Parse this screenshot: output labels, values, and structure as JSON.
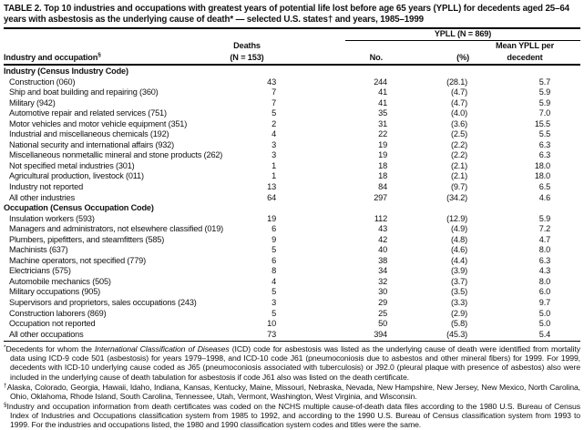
{
  "colors": {
    "ink": "#111111",
    "rule": "#000000",
    "background": "#ffffff"
  },
  "title": "TABLE 2. Top 10 industries and occupations with greatest years of potential life lost before age 65 years (YPLL) for decedents aged 25–64 years with asbestosis as the underlying cause of death* — selected U.S. states† and years, 1985–1999",
  "header": {
    "col_label": "Industry and occupation",
    "col_label_sup": "§",
    "deaths_top": "Deaths",
    "deaths_bottom": "(N = 153)",
    "ypll_group": "YPLL (N = 869)",
    "no": "No.",
    "pct": "(%)",
    "mean_top": "Mean YPLL per",
    "mean_bottom": "decedent"
  },
  "sections": [
    {
      "header": "Industry (Census Industry Code)",
      "rows": [
        {
          "label": "Construction (060)",
          "deaths": "43",
          "no": "244",
          "pct": "(28.1)",
          "mean": "5.7"
        },
        {
          "label": "Ship and boat building and repairing (360)",
          "deaths": "7",
          "no": "41",
          "pct": "(4.7)",
          "mean": "5.9"
        },
        {
          "label": "Military (942)",
          "deaths": "7",
          "no": "41",
          "pct": "(4.7)",
          "mean": "5.9"
        },
        {
          "label": "Automotive repair and related services (751)",
          "deaths": "5",
          "no": "35",
          "pct": "(4.0)",
          "mean": "7.0"
        },
        {
          "label": "Motor vehicles and motor vehicle equipment (351)",
          "deaths": "2",
          "no": "31",
          "pct": "(3.6)",
          "mean": "15.5"
        },
        {
          "label": "Industrial and miscellaneous chemicals (192)",
          "deaths": "4",
          "no": "22",
          "pct": "(2.5)",
          "mean": "5.5"
        },
        {
          "label": "National security and international affairs (932)",
          "deaths": "3",
          "no": "19",
          "pct": "(2.2)",
          "mean": "6.3"
        },
        {
          "label": "Miscellaneous nonmetallic mineral and stone products (262)",
          "deaths": "3",
          "no": "19",
          "pct": "(2.2)",
          "mean": "6.3"
        },
        {
          "label": "Not specified metal industries (301)",
          "deaths": "1",
          "no": "18",
          "pct": "(2.1)",
          "mean": "18.0"
        },
        {
          "label": "Agricultural production, livestock (011)",
          "deaths": "1",
          "no": "18",
          "pct": "(2.1)",
          "mean": "18.0"
        },
        {
          "label": "Industry not reported",
          "deaths": "13",
          "no": "84",
          "pct": "(9.7)",
          "mean": "6.5"
        },
        {
          "label": "All other industries",
          "deaths": "64",
          "no": "297",
          "pct": "(34.2)",
          "mean": "4.6"
        }
      ]
    },
    {
      "header": "Occupation (Census Occupation Code)",
      "rows": [
        {
          "label": "Insulation workers (593)",
          "deaths": "19",
          "no": "112",
          "pct": "(12.9)",
          "mean": "5.9"
        },
        {
          "label": "Managers and administrators, not elsewhere classified (019)",
          "deaths": "6",
          "no": "43",
          "pct": "(4.9)",
          "mean": "7.2"
        },
        {
          "label": "Plumbers, pipefitters, and steamfitters (585)",
          "deaths": "9",
          "no": "42",
          "pct": "(4.8)",
          "mean": "4.7"
        },
        {
          "label": "Machinists (637)",
          "deaths": "5",
          "no": "40",
          "pct": "(4.6)",
          "mean": "8.0"
        },
        {
          "label": "Machine operators, not specified (779)",
          "deaths": "6",
          "no": "38",
          "pct": "(4.4)",
          "mean": "6.3"
        },
        {
          "label": "Electricians (575)",
          "deaths": "8",
          "no": "34",
          "pct": "(3.9)",
          "mean": "4.3"
        },
        {
          "label": "Automobile mechanics (505)",
          "deaths": "4",
          "no": "32",
          "pct": "(3.7)",
          "mean": "8.0"
        },
        {
          "label": "Military occupations (905)",
          "deaths": "5",
          "no": "30",
          "pct": "(3.5)",
          "mean": "6.0"
        },
        {
          "label": "Supervisors and proprietors, sales occupations (243)",
          "deaths": "3",
          "no": "29",
          "pct": "(3.3)",
          "mean": "9.7"
        },
        {
          "label": "Construction laborers (869)",
          "deaths": "5",
          "no": "25",
          "pct": "(2.9)",
          "mean": "5.0"
        },
        {
          "label": "Occupation not reported",
          "deaths": "10",
          "no": "50",
          "pct": "(5.8)",
          "mean": "5.0"
        },
        {
          "label": "All other occupations",
          "deaths": "73",
          "no": "394",
          "pct": "(45.3)",
          "mean": "5.4"
        }
      ]
    }
  ],
  "footnotes": [
    {
      "marker": "*",
      "segments": [
        {
          "text": "Decedents for whom the ",
          "italic": false
        },
        {
          "text": "International Classification of Diseases",
          "italic": true
        },
        {
          "text": " (ICD) code for asbestosis was listed as the underlying cause of death were identified from mortality data using ICD-9 code 501 (asbestosis) for years 1979–1998, and ICD-10 code J61 (pneumoconiosis due to asbestos and other mineral fibers) for 1999. For 1999, decedents with ICD-10 underlying cause coded as J65 (pneumoconiosis associated with tuberculosis) or J92.0 (pleural plaque with presence of asbestos) also were included in the underlying cause of death tabulation for asbestosis if code J61 also was listed on the death certificate.",
          "italic": false
        }
      ]
    },
    {
      "marker": "†",
      "segments": [
        {
          "text": "Alaska, Colorado, Georgia, Hawaii, Idaho, Indiana, Kansas, Kentucky, Maine, Missouri, Nebraska, Nevada, New Hampshire, New Jersey, New Mexico, North Carolina, Ohio, Oklahoma, Rhode Island, South Carolina, Tennessee, Utah, Vermont, Washington, West Virginia, and Wisconsin.",
          "italic": false
        }
      ]
    },
    {
      "marker": "§",
      "segments": [
        {
          "text": "Industry and occupation information from death certificates was coded on the NCHS multiple cause-of-death data files according to the 1980 U.S. Bureau of Census Index of Industries and Occupations classification system from 1985 to 1992, and according to the 1990 U.S. Bureau of Census classification system from 1993 to 1999. For the industries and occupations listed, the 1980 and 1990 classification system codes and titles were the same.",
          "italic": false
        }
      ]
    }
  ]
}
